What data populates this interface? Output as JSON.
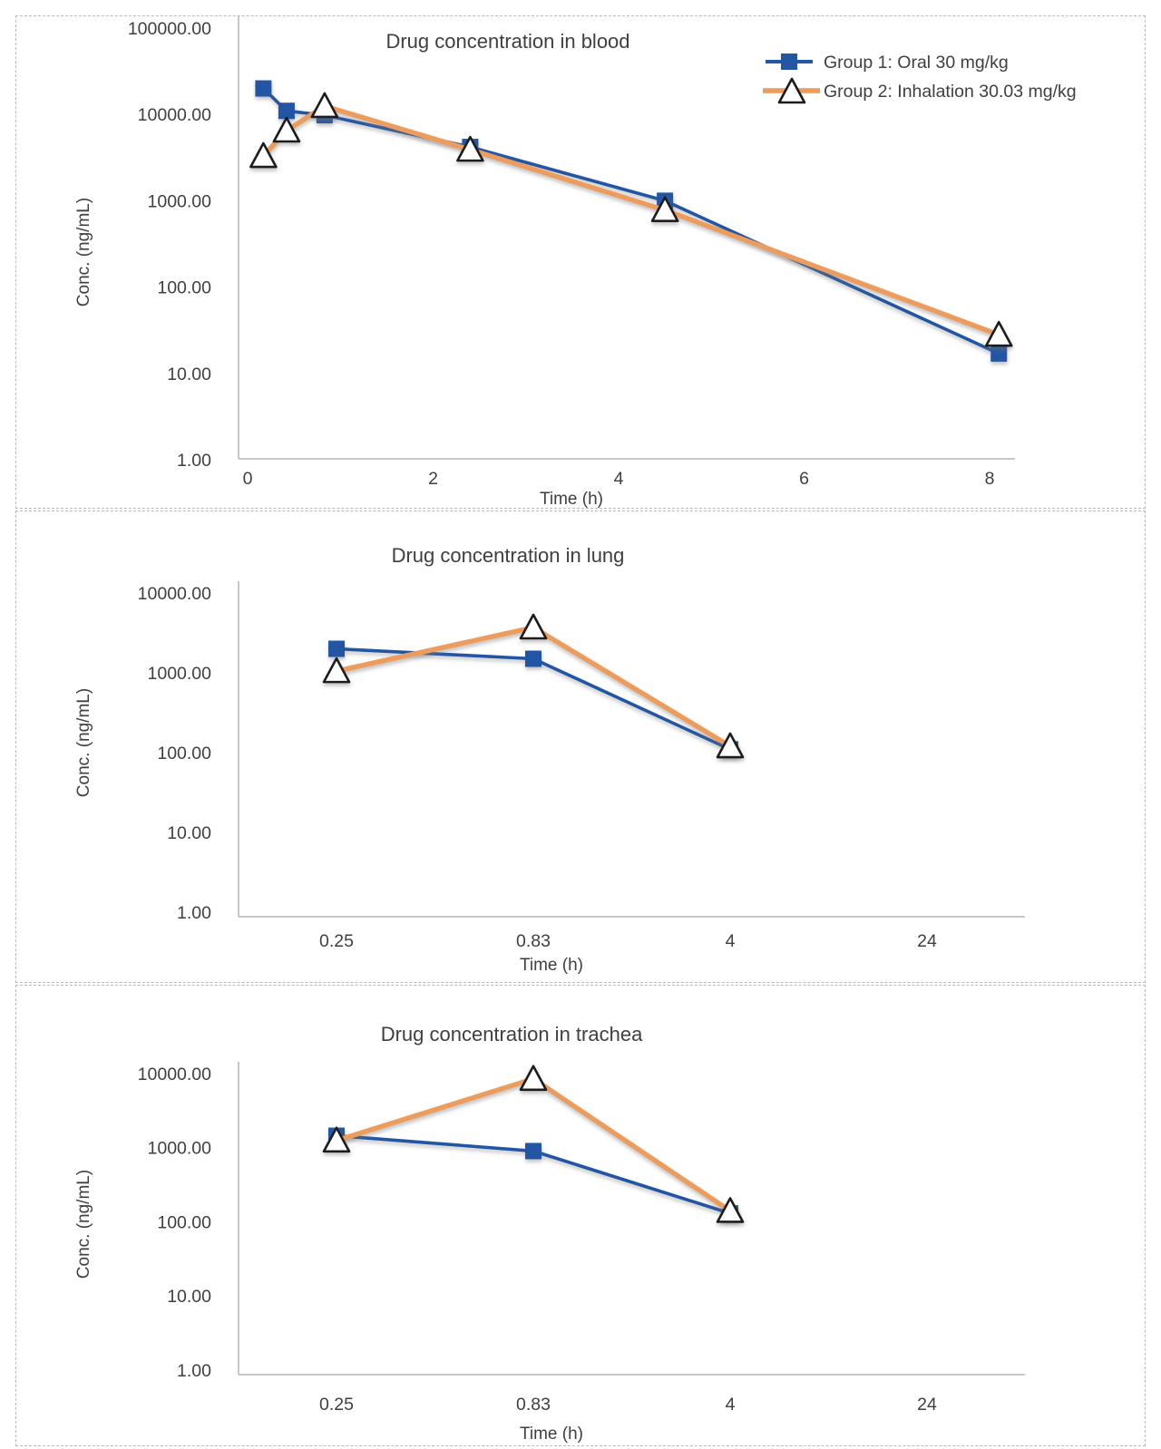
{
  "colors": {
    "group1_blue": "#2456A4",
    "group2_orange": "#EC9C5C",
    "marker_outline": "#1a1a1a",
    "text": "#3f3f3f",
    "axis_line": "#bfbfbf"
  },
  "legend": {
    "position": "top-right-of-first-chart",
    "items": [
      {
        "label": "Group 1: Oral 30 mg/kg",
        "marker": "square"
      },
      {
        "label": "Group 2: Inhalation 30.03 mg/kg",
        "marker": "triangle"
      }
    ]
  },
  "chart_data": [
    {
      "type": "line",
      "title": "Drug concentration in blood",
      "xlabel": "Time (h)",
      "ylabel": "Conc. (ng/mL)",
      "y_scale": "log",
      "ylim": [
        1,
        100000
      ],
      "y_tick_labels": [
        "100000.00",
        "10000.00",
        "1000.00",
        "100.00",
        "10.00",
        "1.00"
      ],
      "x_axis": {
        "kind": "numeric",
        "ticks": [
          0,
          2,
          4,
          6,
          8
        ]
      },
      "legend_visible": true,
      "series": [
        {
          "name": "Group 1: Oral 30 mg/kg",
          "marker": "square",
          "x": [
            0.17,
            0.42,
            0.83,
            2.4,
            4.5,
            8.1
          ],
          "values": [
            20000,
            11000,
            9800,
            4200,
            1000,
            17
          ]
        },
        {
          "name": "Group 2: Inhalation 30.03 mg/kg",
          "marker": "triangle",
          "x": [
            0.17,
            0.42,
            0.83,
            2.4,
            4.5,
            8.1
          ],
          "values": [
            3300,
            6500,
            12500,
            3900,
            780,
            28
          ]
        }
      ]
    },
    {
      "type": "line",
      "title": "Drug concentration in lung",
      "xlabel": "Time (h)",
      "ylabel": "Conc. (ng/mL)",
      "y_scale": "log",
      "ylim": [
        1,
        10000
      ],
      "y_tick_labels": [
        "10000.00",
        "1000.00",
        "100.00",
        "10.00",
        "1.00"
      ],
      "x_axis": {
        "kind": "category",
        "labels": [
          "0.25",
          "0.83",
          "4",
          "24"
        ]
      },
      "legend_visible": false,
      "series": [
        {
          "name": "Group 1: Oral 30 mg/kg",
          "marker": "square",
          "values": [
            2000,
            1500,
            110
          ]
        },
        {
          "name": "Group 2: Inhalation 30.03 mg/kg",
          "marker": "triangle",
          "values": [
            1050,
            3700,
            120
          ]
        }
      ]
    },
    {
      "type": "line",
      "title": "Drug concentration in trachea",
      "xlabel": "Time (h)",
      "ylabel": "Conc. (ng/mL)",
      "y_scale": "log",
      "ylim": [
        1,
        10000
      ],
      "y_tick_labels": [
        "10000.00",
        "1000.00",
        "100.00",
        "10.00",
        "1.00"
      ],
      "x_axis": {
        "kind": "category",
        "labels": [
          "0.25",
          "0.83",
          "4",
          "24"
        ]
      },
      "legend_visible": false,
      "series": [
        {
          "name": "Group 1: Oral 30 mg/kg",
          "marker": "square",
          "values": [
            1450,
            900,
            130
          ]
        },
        {
          "name": "Group 2: Inhalation 30.03 mg/kg",
          "marker": "triangle",
          "values": [
            1250,
            8500,
            140
          ]
        }
      ]
    }
  ]
}
